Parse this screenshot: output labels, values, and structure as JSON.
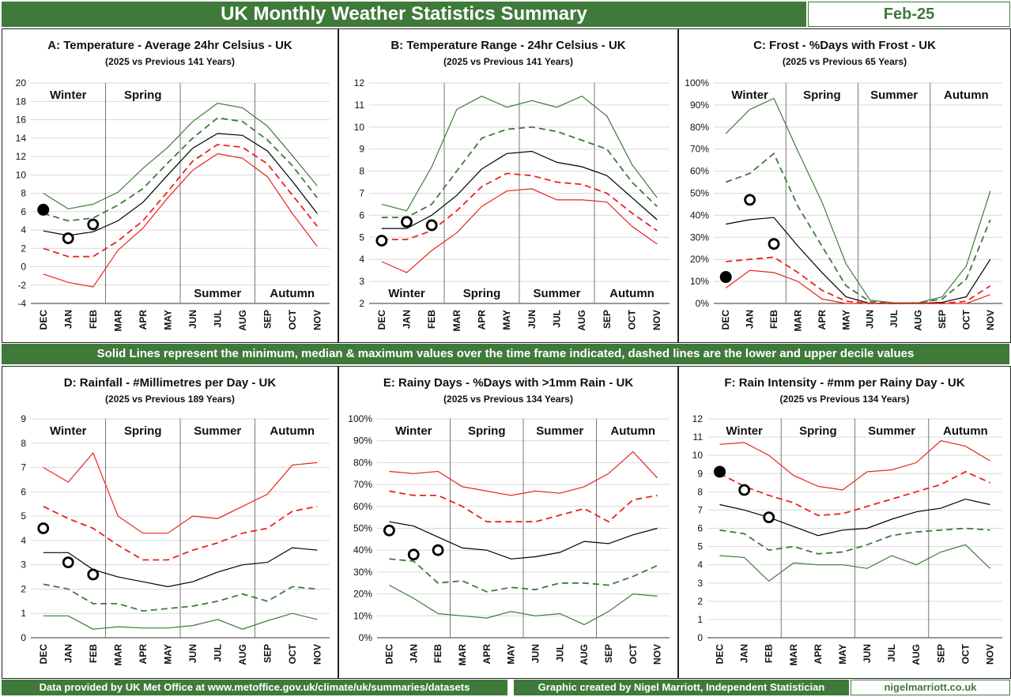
{
  "header": {
    "title": "UK Monthly Weather Statistics Summary",
    "period": "Feb-25"
  },
  "mid_note": "Solid Lines represent the minimum, median & maximum values over the time frame indicated, dashed lines are the lower and upper decile values",
  "footer": {
    "source": "Data provided by UK Met Office at www.metoffice.gov.uk/climate/uk/summaries/datasets",
    "credit": "Graphic created by Nigel Marriott, Independent Statistician",
    "site": "nigelmarriott.co.uk"
  },
  "colors": {
    "banner": "#3f7a3a",
    "max_line": "#e8241c",
    "upper_decile": "#e8241c",
    "median": "#000000",
    "lower_decile": "#3f7a3a",
    "min_line": "#3f7a3a"
  },
  "chart_data": [
    {
      "id": "A",
      "type": "line",
      "title": "A: Temperature - Average 24hr Celsius - UK",
      "subtitle": "(2025 vs Previous 141 Years)",
      "months": [
        "DEC",
        "JAN",
        "FEB",
        "MAR",
        "APR",
        "MAY",
        "JUN",
        "JUL",
        "AUG",
        "SEP",
        "OCT",
        "NOV"
      ],
      "ylim": [
        -4,
        20
      ],
      "ystep": 2,
      "yformat": "int",
      "seasons": [
        {
          "label": "Winter",
          "pos": "top"
        },
        {
          "label": "Spring",
          "pos": "top"
        },
        {
          "label": "Summer",
          "pos": "bottom"
        },
        {
          "label": "Autumn",
          "pos": "bottom"
        }
      ],
      "series": [
        {
          "role": "top-solid",
          "color": "#3f7a3a",
          "dash": false,
          "values": [
            8.0,
            6.3,
            6.8,
            8.1,
            10.7,
            13.0,
            15.8,
            17.8,
            17.3,
            15.3,
            12.1,
            8.8
          ]
        },
        {
          "role": "top-dashed",
          "color": "#3f7a3a",
          "dash": true,
          "values": [
            5.8,
            5.0,
            5.3,
            6.7,
            8.5,
            11.3,
            14.0,
            16.2,
            15.8,
            13.8,
            11.0,
            7.5
          ]
        },
        {
          "role": "median",
          "color": "#000000",
          "dash": false,
          "values": [
            3.9,
            3.4,
            3.8,
            5.0,
            7.0,
            10.0,
            12.9,
            14.5,
            14.3,
            12.6,
            9.3,
            5.8
          ]
        },
        {
          "role": "bottom-dashed",
          "color": "#e8241c",
          "dash": true,
          "values": [
            2.0,
            1.1,
            1.1,
            2.8,
            5.0,
            8.2,
            11.5,
            13.3,
            13.0,
            11.2,
            7.8,
            4.4
          ]
        },
        {
          "role": "bottom-solid",
          "color": "#e8241c",
          "dash": false,
          "values": [
            -0.8,
            -1.7,
            -2.2,
            1.8,
            4.2,
            7.5,
            10.5,
            12.3,
            11.8,
            9.8,
            5.8,
            2.2
          ]
        }
      ],
      "points_2025": [
        {
          "month": "DEC",
          "value": 6.2,
          "filled": true
        },
        {
          "month": "JAN",
          "value": 3.1,
          "filled": false
        },
        {
          "month": "FEB",
          "value": 4.6,
          "filled": false
        }
      ]
    },
    {
      "id": "B",
      "type": "line",
      "title": "B: Temperature Range - 24hr Celsius - UK",
      "subtitle": "(2025 vs Previous 141 Years)",
      "months": [
        "DEC",
        "JAN",
        "FEB",
        "MAR",
        "APR",
        "MAY",
        "JUN",
        "JUL",
        "AUG",
        "SEP",
        "OCT",
        "NOV"
      ],
      "ylim": [
        2,
        12
      ],
      "ystep": 1,
      "yformat": "int",
      "seasons": [
        {
          "label": "Winter",
          "pos": "bottom"
        },
        {
          "label": "Spring",
          "pos": "bottom"
        },
        {
          "label": "Summer",
          "pos": "bottom"
        },
        {
          "label": "Autumn",
          "pos": "bottom"
        }
      ],
      "series": [
        {
          "role": "top-solid",
          "color": "#3f7a3a",
          "dash": false,
          "values": [
            6.5,
            6.2,
            8.2,
            10.8,
            11.4,
            10.9,
            11.2,
            10.9,
            11.4,
            10.5,
            8.3,
            6.8
          ]
        },
        {
          "role": "top-dashed",
          "color": "#3f7a3a",
          "dash": true,
          "values": [
            5.9,
            5.9,
            6.5,
            8.0,
            9.5,
            9.9,
            10.0,
            9.8,
            9.4,
            9.0,
            7.5,
            6.4
          ]
        },
        {
          "role": "median",
          "color": "#000000",
          "dash": false,
          "values": [
            5.4,
            5.4,
            6.0,
            6.9,
            8.1,
            8.8,
            8.9,
            8.4,
            8.2,
            7.8,
            6.8,
            5.8
          ]
        },
        {
          "role": "bottom-dashed",
          "color": "#e8241c",
          "dash": true,
          "values": [
            4.9,
            4.9,
            5.3,
            6.2,
            7.3,
            7.9,
            7.8,
            7.5,
            7.4,
            7.0,
            6.1,
            5.3
          ]
        },
        {
          "role": "bottom-solid",
          "color": "#e8241c",
          "dash": false,
          "values": [
            3.9,
            3.4,
            4.4,
            5.2,
            6.4,
            7.1,
            7.2,
            6.7,
            6.7,
            6.6,
            5.5,
            4.7
          ]
        }
      ],
      "points_2025": [
        {
          "month": "DEC",
          "value": 4.85,
          "filled": false
        },
        {
          "month": "JAN",
          "value": 5.7,
          "filled": false
        },
        {
          "month": "FEB",
          "value": 5.55,
          "filled": false
        }
      ]
    },
    {
      "id": "C",
      "type": "line",
      "title": "C: Frost - %Days with Frost - UK",
      "subtitle": "(2025 vs Previous 65 Years)",
      "months": [
        "DEC",
        "JAN",
        "FEB",
        "MAR",
        "APR",
        "MAY",
        "JUN",
        "JUL",
        "AUG",
        "SEP",
        "OCT",
        "NOV"
      ],
      "ylim": [
        0,
        100
      ],
      "ystep": 10,
      "yformat": "pct",
      "seasons": [
        {
          "label": "Winter",
          "pos": "top"
        },
        {
          "label": "Spring",
          "pos": "top"
        },
        {
          "label": "Summer",
          "pos": "top"
        },
        {
          "label": "Autumn",
          "pos": "top"
        }
      ],
      "series": [
        {
          "role": "max",
          "color": "#3f7a3a",
          "dash": false,
          "values": [
            77,
            88,
            93,
            69,
            46,
            18,
            1.5,
            0.3,
            0.3,
            3,
            17,
            51
          ]
        },
        {
          "role": "upper-decile",
          "color": "#3f7a3a",
          "dash": true,
          "values": [
            55,
            59,
            68,
            44,
            26,
            8,
            0.8,
            0,
            0.3,
            2,
            11,
            38
          ]
        },
        {
          "role": "median",
          "color": "#000000",
          "dash": false,
          "values": [
            36,
            38,
            39,
            26,
            14,
            3,
            0,
            0,
            0,
            0.5,
            3,
            20
          ]
        },
        {
          "role": "lower-decile",
          "color": "#e8241c",
          "dash": true,
          "values": [
            19,
            20,
            21,
            14,
            6,
            1,
            0,
            0,
            0,
            0,
            1,
            8
          ]
        },
        {
          "role": "min",
          "color": "#e8241c",
          "dash": false,
          "values": [
            7,
            15,
            14,
            10,
            2,
            0,
            0,
            0,
            0,
            0,
            0,
            4
          ]
        }
      ],
      "points_2025": [
        {
          "month": "DEC",
          "value": 12,
          "filled": true
        },
        {
          "month": "JAN",
          "value": 47,
          "filled": false
        },
        {
          "month": "FEB",
          "value": 27,
          "filled": false
        }
      ]
    },
    {
      "id": "D",
      "type": "line",
      "title": "D: Rainfall - #Millimetres per Day - UK",
      "subtitle": "(2025 vs Previous 189 Years)",
      "months": [
        "DEC",
        "JAN",
        "FEB",
        "MAR",
        "APR",
        "MAY",
        "JUN",
        "JUL",
        "AUG",
        "SEP",
        "OCT",
        "NOV"
      ],
      "ylim": [
        0,
        9
      ],
      "ystep": 1,
      "yformat": "int",
      "seasons": [
        {
          "label": "Winter",
          "pos": "top"
        },
        {
          "label": "Spring",
          "pos": "top"
        },
        {
          "label": "Summer",
          "pos": "top"
        },
        {
          "label": "Autumn",
          "pos": "top"
        }
      ],
      "series": [
        {
          "role": "max",
          "color": "#e8241c",
          "dash": false,
          "values": [
            7.0,
            6.4,
            7.6,
            5.0,
            4.3,
            4.3,
            5.0,
            4.9,
            5.4,
            5.9,
            7.1,
            7.2
          ]
        },
        {
          "role": "upper-decile",
          "color": "#e8241c",
          "dash": true,
          "values": [
            5.4,
            4.9,
            4.5,
            3.8,
            3.2,
            3.2,
            3.6,
            3.9,
            4.3,
            4.5,
            5.2,
            5.4
          ]
        },
        {
          "role": "median",
          "color": "#000000",
          "dash": false,
          "values": [
            3.5,
            3.5,
            2.8,
            2.5,
            2.3,
            2.1,
            2.3,
            2.7,
            3.0,
            3.1,
            3.7,
            3.6
          ]
        },
        {
          "role": "lower-decile",
          "color": "#3f7a3a",
          "dash": true,
          "values": [
            2.2,
            2.0,
            1.4,
            1.4,
            1.1,
            1.2,
            1.3,
            1.5,
            1.8,
            1.5,
            2.1,
            2.0
          ]
        },
        {
          "role": "min",
          "color": "#3f7a3a",
          "dash": false,
          "values": [
            0.9,
            0.9,
            0.35,
            0.45,
            0.4,
            0.4,
            0.5,
            0.75,
            0.35,
            0.7,
            1.0,
            0.75
          ]
        }
      ],
      "points_2025": [
        {
          "month": "DEC",
          "value": 4.5,
          "filled": false
        },
        {
          "month": "JAN",
          "value": 3.1,
          "filled": false
        },
        {
          "month": "FEB",
          "value": 2.6,
          "filled": false
        }
      ]
    },
    {
      "id": "E",
      "type": "line",
      "title": "E: Rainy Days - %Days with >1mm Rain - UK",
      "subtitle": "(2025 vs Previous 134 Years)",
      "months": [
        "DEC",
        "JAN",
        "FEB",
        "MAR",
        "APR",
        "MAY",
        "JUN",
        "JUL",
        "AUG",
        "SEP",
        "OCT",
        "NOV"
      ],
      "ylim": [
        0,
        100
      ],
      "ystep": 10,
      "yformat": "pct",
      "seasons": [
        {
          "label": "Winter",
          "pos": "top"
        },
        {
          "label": "Spring",
          "pos": "top"
        },
        {
          "label": "Summer",
          "pos": "top"
        },
        {
          "label": "Autumn",
          "pos": "top"
        }
      ],
      "series": [
        {
          "role": "max",
          "color": "#e8241c",
          "dash": false,
          "values": [
            76,
            75,
            76,
            69,
            67,
            65,
            67,
            66,
            69,
            75,
            85,
            73
          ]
        },
        {
          "role": "upper-decile",
          "color": "#e8241c",
          "dash": true,
          "values": [
            67,
            65,
            65,
            60,
            53,
            53,
            53,
            56,
            59,
            53,
            63,
            65
          ]
        },
        {
          "role": "median",
          "color": "#000000",
          "dash": false,
          "values": [
            53,
            51,
            46,
            41,
            40,
            36,
            37,
            39,
            44,
            43,
            47,
            50
          ]
        },
        {
          "role": "lower-decile",
          "color": "#3f7a3a",
          "dash": true,
          "values": [
            36,
            35,
            25,
            26,
            21,
            23,
            22,
            25,
            25,
            24,
            28,
            33
          ]
        },
        {
          "role": "min",
          "color": "#3f7a3a",
          "dash": false,
          "values": [
            24,
            18,
            11,
            10,
            9,
            12,
            10,
            11,
            6,
            12,
            20,
            19
          ]
        }
      ],
      "points_2025": [
        {
          "month": "DEC",
          "value": 49,
          "filled": false
        },
        {
          "month": "JAN",
          "value": 38,
          "filled": false
        },
        {
          "month": "FEB",
          "value": 40,
          "filled": false
        }
      ]
    },
    {
      "id": "F",
      "type": "line",
      "title": "F: Rain Intensity - #mm per Rainy Day - UK",
      "subtitle": "(2025 vs Previous 134 Years)",
      "months": [
        "DEC",
        "JAN",
        "FEB",
        "MAR",
        "APR",
        "MAY",
        "JUN",
        "JUL",
        "AUG",
        "SEP",
        "OCT",
        "NOV"
      ],
      "ylim": [
        0,
        12
      ],
      "ystep": 1,
      "yformat": "int",
      "seasons": [
        {
          "label": "Winter",
          "pos": "top"
        },
        {
          "label": "Spring",
          "pos": "top"
        },
        {
          "label": "Summer",
          "pos": "top"
        },
        {
          "label": "Autumn",
          "pos": "top"
        }
      ],
      "series": [
        {
          "role": "max",
          "color": "#e8241c",
          "dash": false,
          "values": [
            10.6,
            10.7,
            10.0,
            8.9,
            8.3,
            8.1,
            9.1,
            9.2,
            9.6,
            10.8,
            10.5,
            9.7
          ]
        },
        {
          "role": "upper-decile",
          "color": "#e8241c",
          "dash": true,
          "values": [
            9.0,
            8.3,
            7.8,
            7.4,
            6.7,
            6.8,
            7.2,
            7.6,
            8.0,
            8.4,
            9.1,
            8.5
          ]
        },
        {
          "role": "median",
          "color": "#000000",
          "dash": false,
          "values": [
            7.3,
            7.0,
            6.6,
            6.1,
            5.6,
            5.9,
            6.0,
            6.5,
            6.9,
            7.1,
            7.6,
            7.3
          ]
        },
        {
          "role": "lower-decile",
          "color": "#3f7a3a",
          "dash": true,
          "values": [
            5.9,
            5.7,
            4.8,
            5.0,
            4.6,
            4.7,
            5.1,
            5.6,
            5.8,
            5.9,
            6.0,
            5.9
          ]
        },
        {
          "role": "min",
          "color": "#3f7a3a",
          "dash": false,
          "values": [
            4.5,
            4.4,
            3.1,
            4.1,
            4.0,
            4.0,
            3.8,
            4.5,
            4.0,
            4.7,
            5.1,
            3.8
          ]
        }
      ],
      "points_2025": [
        {
          "month": "DEC",
          "value": 9.1,
          "filled": true
        },
        {
          "month": "JAN",
          "value": 8.1,
          "filled": false
        },
        {
          "month": "FEB",
          "value": 6.6,
          "filled": false
        }
      ]
    }
  ]
}
